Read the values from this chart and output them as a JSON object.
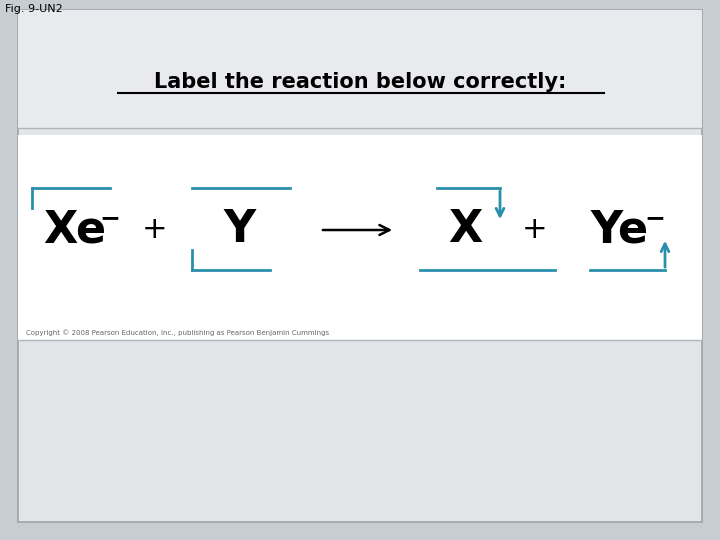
{
  "fig_label": "Fig. 9-UN2",
  "title": "Label the reaction below correctly:",
  "bg_outer": "#c8cdd4",
  "bg_panel": "#e2e4e8",
  "bg_reaction_box": "#f5f5f5",
  "bg_white_box": "#ffffff",
  "title_color": "#000000",
  "title_fontsize": 15,
  "reaction_color": "#000000",
  "arrow_color": "#2a8fad",
  "copyright_text": "Copyright © 2008 Pearson Education, Inc., publishing as Pearson Benjamin Cummings",
  "reaction_fontsize": 32,
  "superscript_fontsize": 18
}
